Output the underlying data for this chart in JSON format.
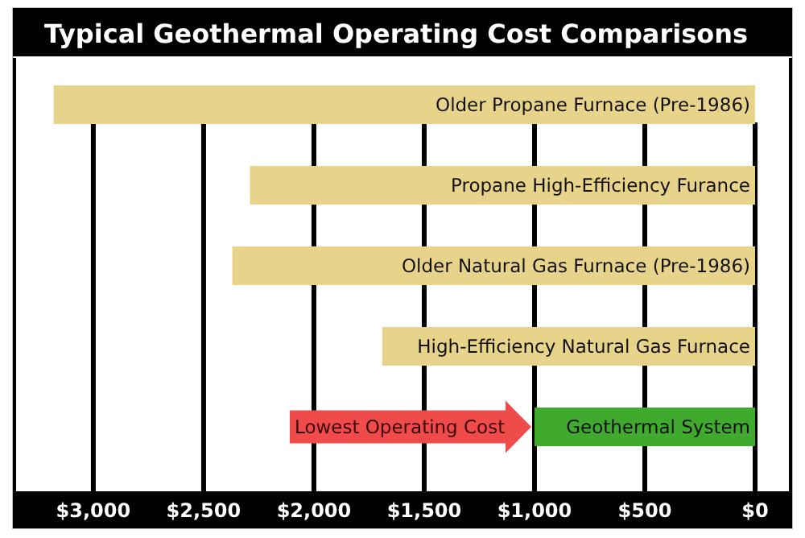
{
  "chart_data": {
    "type": "bar",
    "orientation": "horizontal",
    "title": "Typical Geothermal Operating Cost Comparisons",
    "categories": [
      "Older Propane Furnace (Pre-1986)",
      "Propane High-Efficiency Furance",
      "Older Natural Gas Furnace (Pre-1986)",
      "High-Efficiency Natural Gas Furnace",
      "Geothermal System"
    ],
    "values": [
      3180,
      2290,
      2370,
      1690,
      1000
    ],
    "colors": [
      "#e8d38a",
      "#e8d38a",
      "#e8d38a",
      "#e8d38a",
      "#3faa2e"
    ],
    "xlim": [
      3350,
      0
    ],
    "xticks": [
      {
        "value": 3000,
        "label": "$3,000"
      },
      {
        "value": 2500,
        "label": "$2,500"
      },
      {
        "value": 2000,
        "label": "$2,000"
      },
      {
        "value": 1500,
        "label": "$1,500"
      },
      {
        "value": 1000,
        "label": "$1,000"
      },
      {
        "value": 500,
        "label": "$500"
      },
      {
        "value": 0,
        "label": "$0"
      }
    ],
    "grid": "x",
    "annotations": [
      {
        "text": "Lowest Operating Cost",
        "x": 1000,
        "y": "Geothermal System"
      }
    ]
  }
}
